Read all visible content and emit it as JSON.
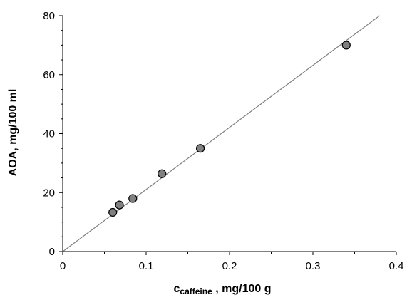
{
  "chart_data": {
    "type": "scatter",
    "title": "",
    "xlabel": {
      "main": "c",
      "subscript": "caffeine",
      "suffix": " , mg/100 g"
    },
    "ylabel": "AOA, mg/100 ml",
    "xlim": [
      0,
      0.4
    ],
    "ylim": [
      0,
      80
    ],
    "x_ticks": [
      0,
      0.1,
      0.2,
      0.3,
      0.4
    ],
    "x_tick_labels": [
      "0",
      "0.1",
      "0.2",
      "0.3",
      "0.4"
    ],
    "y_ticks": [
      0,
      20,
      40,
      60,
      80
    ],
    "y_tick_labels": [
      "0",
      "20",
      "40",
      "60",
      "80"
    ],
    "grid": false,
    "legend": "none",
    "series": [
      {
        "points": [
          {
            "x": 0.06,
            "y": 13.3
          },
          {
            "x": 0.068,
            "y": 15.8
          },
          {
            "x": 0.084,
            "y": 18.0
          },
          {
            "x": 0.119,
            "y": 26.4
          },
          {
            "x": 0.165,
            "y": 35.0
          },
          {
            "x": 0.34,
            "y": 70.0
          }
        ],
        "marker_color": "#808080",
        "marker_edge": "#000000"
      }
    ],
    "fit_line": {
      "x": [
        0,
        0.38
      ],
      "y": [
        0,
        80
      ],
      "color": "#808080"
    }
  }
}
